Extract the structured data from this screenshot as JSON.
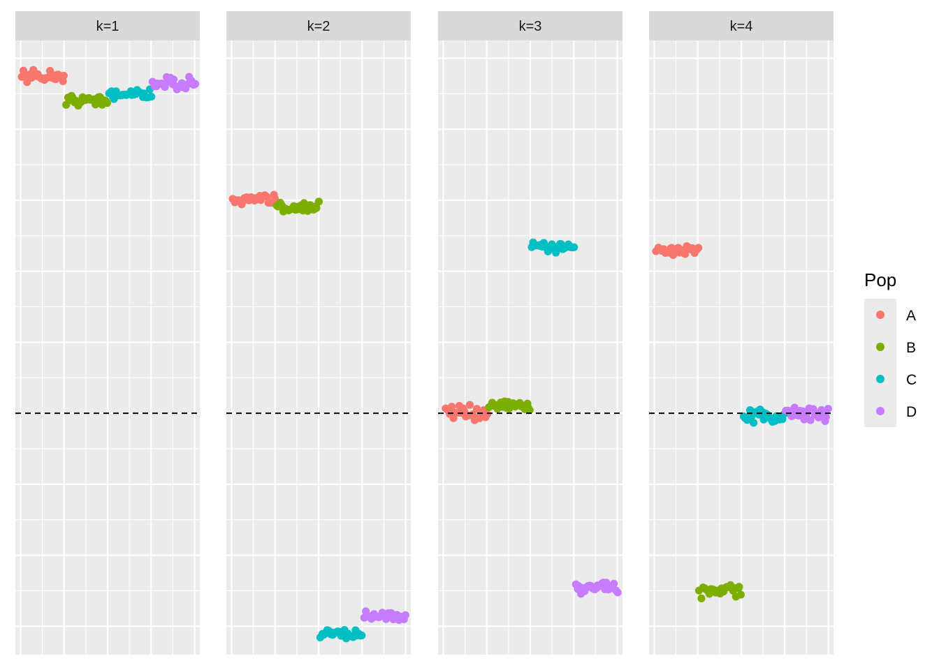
{
  "chart_data": {
    "type": "scatter",
    "facet_variable": "k",
    "facets": [
      {
        "label": "k=1",
        "means": {
          "A": 0.95,
          "B": 0.88,
          "C": 0.9,
          "D": 0.93
        }
      },
      {
        "label": "k=2",
        "means": {
          "A": 0.6,
          "B": 0.58,
          "C": -0.62,
          "D": -0.57
        }
      },
      {
        "label": "k=3",
        "means": {
          "A": 0.0,
          "B": 0.02,
          "C": 0.47,
          "D": -0.49
        }
      },
      {
        "label": "k=4",
        "means": {
          "A": 0.46,
          "B": -0.5,
          "C": -0.01,
          "D": 0.0
        }
      }
    ],
    "series": [
      {
        "name": "A",
        "color": "#F8766D",
        "x_range": [
          1,
          25
        ]
      },
      {
        "name": "B",
        "color": "#7CAE00",
        "x_range": [
          26,
          50
        ]
      },
      {
        "name": "C",
        "color": "#00BFC4",
        "x_range": [
          51,
          75
        ]
      },
      {
        "name": "D",
        "color": "#C77CFF",
        "x_range": [
          76,
          100
        ]
      }
    ],
    "points_per_group": 25,
    "spread": 0.012,
    "xlim": [
      -3,
      103
    ],
    "ylim": [
      -0.68,
      1.05
    ],
    "hline": {
      "y": 0,
      "style": "dashed",
      "color": "#000000"
    },
    "legend": {
      "title": "Pop",
      "entries": [
        "A",
        "B",
        "C",
        "D"
      ],
      "position": "right"
    },
    "xlabel": "",
    "ylabel": "",
    "grid": true,
    "x_tick_labels_shown": false,
    "y_tick_labels_shown": false
  }
}
